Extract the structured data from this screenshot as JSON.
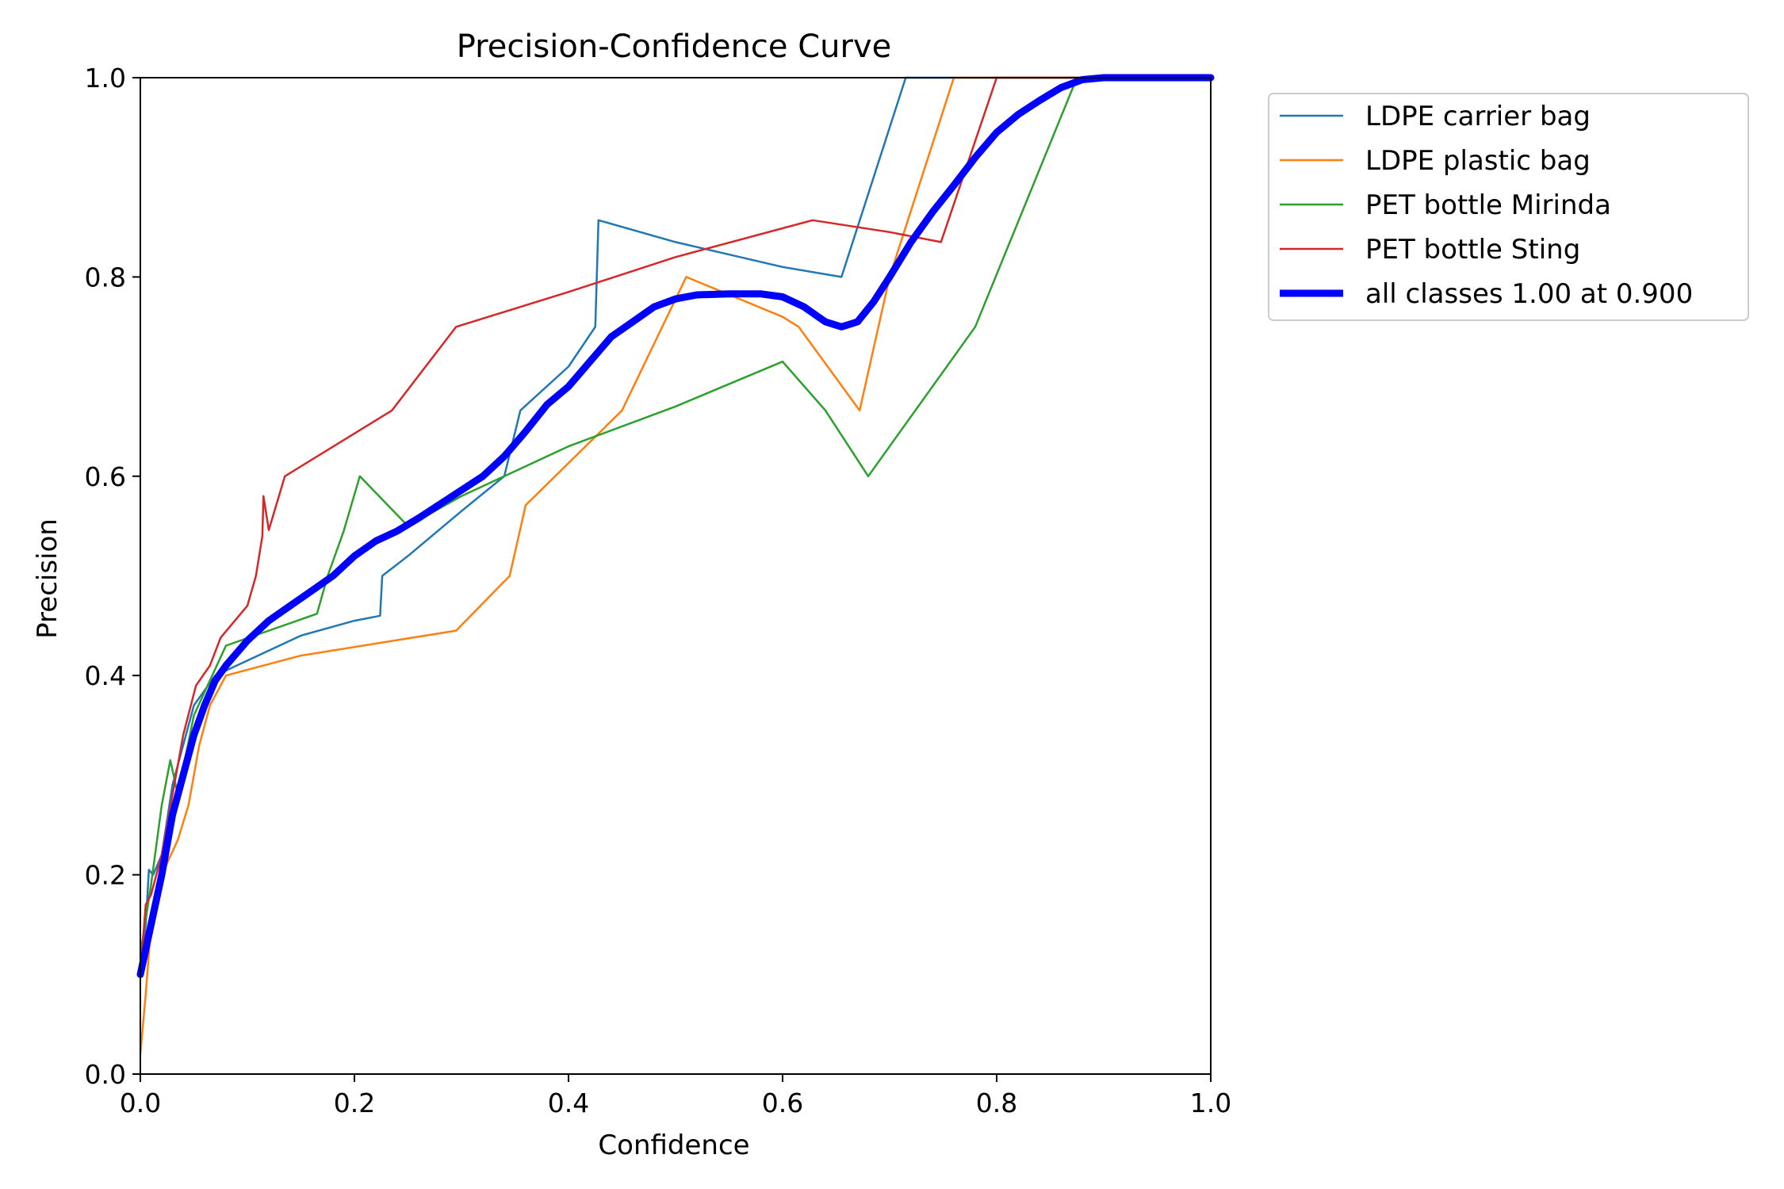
{
  "chart_data": {
    "type": "line",
    "title": "Precision-Confidence Curve",
    "xlabel": "Confidence",
    "ylabel": "Precision",
    "xlim": [
      0,
      1
    ],
    "ylim": [
      0,
      1
    ],
    "xticks": [
      "0.0",
      "0.2",
      "0.4",
      "0.6",
      "0.8",
      "1.0"
    ],
    "yticks": [
      "0.0",
      "0.2",
      "0.4",
      "0.6",
      "0.8",
      "1.0"
    ],
    "grid": false,
    "legend_position": "outside-top-right",
    "series": [
      {
        "name": "LDPE carrier bag",
        "color": "#1f77b4",
        "emphasis": false,
        "points": [
          [
            0.0,
            0.1
          ],
          [
            0.005,
            0.15
          ],
          [
            0.008,
            0.205
          ],
          [
            0.012,
            0.2
          ],
          [
            0.02,
            0.22
          ],
          [
            0.03,
            0.29
          ],
          [
            0.05,
            0.37
          ],
          [
            0.07,
            0.4
          ],
          [
            0.09,
            0.41
          ],
          [
            0.15,
            0.44
          ],
          [
            0.2,
            0.455
          ],
          [
            0.224,
            0.46
          ],
          [
            0.226,
            0.5
          ],
          [
            0.25,
            0.52
          ],
          [
            0.3,
            0.565
          ],
          [
            0.34,
            0.6
          ],
          [
            0.355,
            0.666
          ],
          [
            0.4,
            0.71
          ],
          [
            0.425,
            0.75
          ],
          [
            0.428,
            0.857
          ],
          [
            0.5,
            0.835
          ],
          [
            0.6,
            0.81
          ],
          [
            0.655,
            0.8
          ],
          [
            0.715,
            1.0
          ],
          [
            1.0,
            1.0
          ]
        ]
      },
      {
        "name": "LDPE plastic bag",
        "color": "#ff7f0e",
        "emphasis": false,
        "points": [
          [
            0.0,
            0.02
          ],
          [
            0.005,
            0.08
          ],
          [
            0.01,
            0.15
          ],
          [
            0.02,
            0.2
          ],
          [
            0.035,
            0.235
          ],
          [
            0.045,
            0.27
          ],
          [
            0.055,
            0.33
          ],
          [
            0.065,
            0.37
          ],
          [
            0.08,
            0.4
          ],
          [
            0.15,
            0.42
          ],
          [
            0.295,
            0.445
          ],
          [
            0.345,
            0.5
          ],
          [
            0.36,
            0.571
          ],
          [
            0.45,
            0.666
          ],
          [
            0.51,
            0.8
          ],
          [
            0.6,
            0.76
          ],
          [
            0.615,
            0.75
          ],
          [
            0.672,
            0.666
          ],
          [
            0.7,
            0.8
          ],
          [
            0.76,
            1.0
          ],
          [
            1.0,
            1.0
          ]
        ]
      },
      {
        "name": "PET bottle Mirinda",
        "color": "#2ca02c",
        "emphasis": false,
        "points": [
          [
            0.0,
            0.12
          ],
          [
            0.01,
            0.19
          ],
          [
            0.02,
            0.27
          ],
          [
            0.028,
            0.315
          ],
          [
            0.035,
            0.28
          ],
          [
            0.05,
            0.36
          ],
          [
            0.08,
            0.43
          ],
          [
            0.165,
            0.462
          ],
          [
            0.175,
            0.5
          ],
          [
            0.19,
            0.545
          ],
          [
            0.205,
            0.6
          ],
          [
            0.25,
            0.55
          ],
          [
            0.3,
            0.58
          ],
          [
            0.4,
            0.63
          ],
          [
            0.5,
            0.67
          ],
          [
            0.6,
            0.715
          ],
          [
            0.64,
            0.666
          ],
          [
            0.68,
            0.6
          ],
          [
            0.78,
            0.75
          ],
          [
            0.875,
            1.0
          ],
          [
            1.0,
            1.0
          ]
        ]
      },
      {
        "name": "PET bottle Sting",
        "color": "#d62728",
        "emphasis": false,
        "points": [
          [
            0.0,
            0.1
          ],
          [
            0.005,
            0.17
          ],
          [
            0.01,
            0.18
          ],
          [
            0.02,
            0.22
          ],
          [
            0.04,
            0.34
          ],
          [
            0.052,
            0.39
          ],
          [
            0.065,
            0.41
          ],
          [
            0.075,
            0.438
          ],
          [
            0.1,
            0.47
          ],
          [
            0.108,
            0.5
          ],
          [
            0.114,
            0.54
          ],
          [
            0.115,
            0.58
          ],
          [
            0.12,
            0.546
          ],
          [
            0.135,
            0.6
          ],
          [
            0.235,
            0.666
          ],
          [
            0.295,
            0.75
          ],
          [
            0.4,
            0.785
          ],
          [
            0.5,
            0.82
          ],
          [
            0.628,
            0.857
          ],
          [
            0.7,
            0.845
          ],
          [
            0.748,
            0.835
          ],
          [
            0.8,
            1.0
          ],
          [
            1.0,
            1.0
          ]
        ]
      },
      {
        "name": "all classes 1.00 at 0.900",
        "color": "#0000ff",
        "emphasis": true,
        "points": [
          [
            0.0,
            0.1
          ],
          [
            0.01,
            0.15
          ],
          [
            0.02,
            0.2
          ],
          [
            0.03,
            0.26
          ],
          [
            0.04,
            0.3
          ],
          [
            0.05,
            0.34
          ],
          [
            0.06,
            0.37
          ],
          [
            0.07,
            0.395
          ],
          [
            0.08,
            0.41
          ],
          [
            0.1,
            0.435
          ],
          [
            0.12,
            0.455
          ],
          [
            0.14,
            0.47
          ],
          [
            0.16,
            0.485
          ],
          [
            0.18,
            0.5
          ],
          [
            0.2,
            0.52
          ],
          [
            0.22,
            0.535
          ],
          [
            0.24,
            0.545
          ],
          [
            0.26,
            0.558
          ],
          [
            0.28,
            0.572
          ],
          [
            0.3,
            0.586
          ],
          [
            0.32,
            0.6
          ],
          [
            0.34,
            0.62
          ],
          [
            0.36,
            0.645
          ],
          [
            0.38,
            0.672
          ],
          [
            0.4,
            0.69
          ],
          [
            0.42,
            0.715
          ],
          [
            0.44,
            0.74
          ],
          [
            0.46,
            0.755
          ],
          [
            0.48,
            0.77
          ],
          [
            0.5,
            0.778
          ],
          [
            0.52,
            0.782
          ],
          [
            0.55,
            0.783
          ],
          [
            0.58,
            0.783
          ],
          [
            0.6,
            0.78
          ],
          [
            0.62,
            0.77
          ],
          [
            0.64,
            0.755
          ],
          [
            0.655,
            0.75
          ],
          [
            0.67,
            0.755
          ],
          [
            0.685,
            0.775
          ],
          [
            0.7,
            0.8
          ],
          [
            0.72,
            0.835
          ],
          [
            0.74,
            0.865
          ],
          [
            0.76,
            0.892
          ],
          [
            0.78,
            0.92
          ],
          [
            0.8,
            0.945
          ],
          [
            0.82,
            0.963
          ],
          [
            0.84,
            0.977
          ],
          [
            0.86,
            0.99
          ],
          [
            0.88,
            0.998
          ],
          [
            0.9,
            1.0
          ],
          [
            1.0,
            1.0
          ]
        ]
      }
    ]
  }
}
